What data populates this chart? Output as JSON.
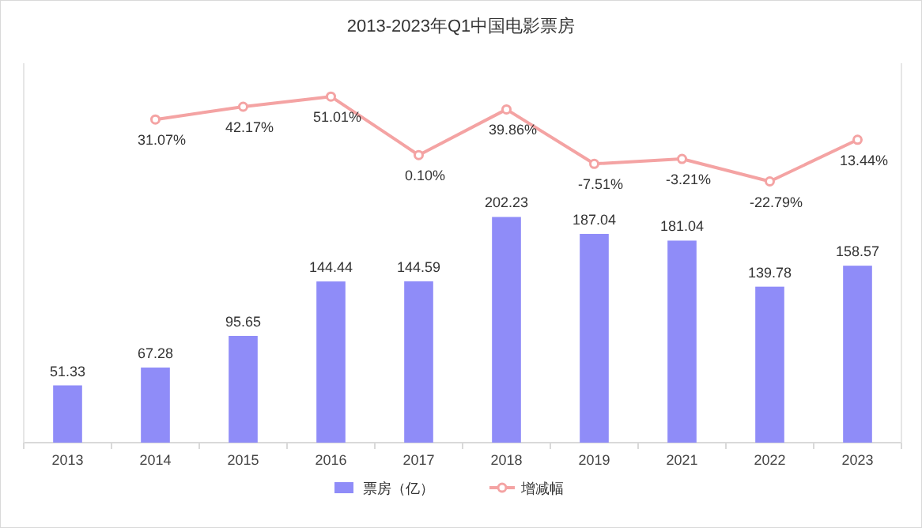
{
  "chart_data": {
    "type": "bar",
    "title": "2013-2023年Q1中国电影票房",
    "categories": [
      "2013",
      "2014",
      "2015",
      "2016",
      "2017",
      "2018",
      "2019",
      "2021",
      "2022",
      "2023"
    ],
    "series": [
      {
        "name": "票房（亿）",
        "color": "#8f8cf8",
        "values": [
          51.33,
          67.28,
          95.65,
          144.44,
          144.59,
          202.23,
          187.04,
          181.04,
          139.78,
          158.57
        ],
        "value_labels": [
          "51.33",
          "67.28",
          "95.65",
          "144.44",
          "144.59",
          "202.23",
          "187.04",
          "181.04",
          "139.78",
          "158.57"
        ]
      },
      {
        "name": "增减幅",
        "type": "line",
        "axis": "y2",
        "color": "#f4a3a3",
        "marker": "circle",
        "values": [
          null,
          31.07,
          42.17,
          51.01,
          0.1,
          39.86,
          -7.51,
          -3.21,
          -22.79,
          13.44
        ],
        "value_labels": [
          null,
          "31.07%",
          "42.17%",
          "51.01%",
          "0.10%",
          "39.86%",
          "-7.51%",
          "-3.21%",
          "-22.79%",
          "13.44%"
        ]
      }
    ],
    "ylim": [
      0,
      340
    ],
    "y2lim": [
      -250,
      80
    ],
    "tick_labels": "x",
    "legend": "bottom"
  }
}
